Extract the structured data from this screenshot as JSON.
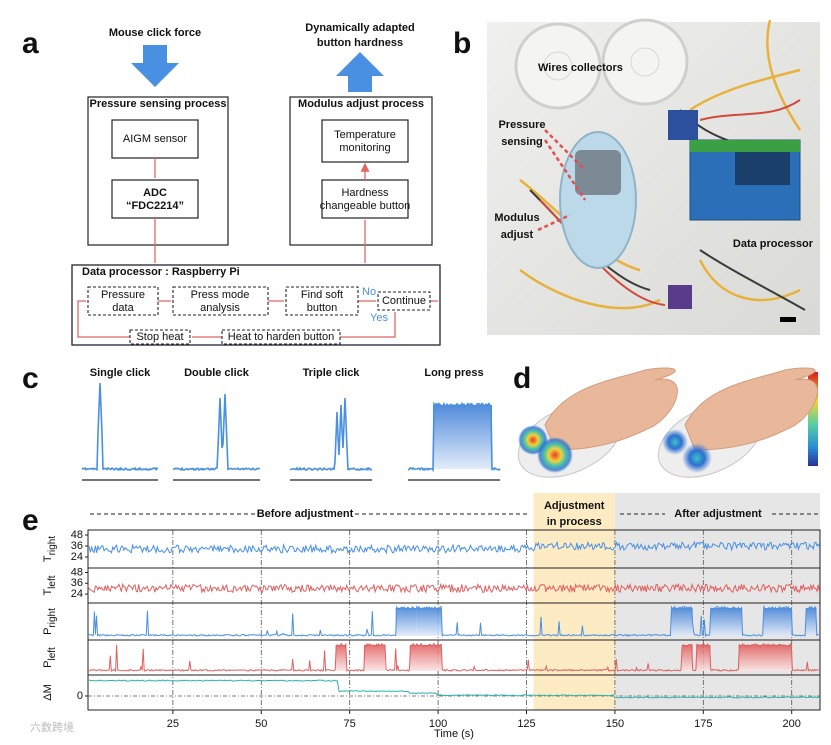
{
  "panel_a": {
    "letter": "a",
    "input_label": "Mouse click force",
    "output_label": [
      "Dynamically adapted",
      "button hardness"
    ],
    "sensing": {
      "title": "Pressure sensing process",
      "sensor": "AIGM sensor",
      "adc": [
        "ADC",
        "“FDC2214”"
      ]
    },
    "modulus": {
      "title": "Modulus adjust process",
      "monitor": [
        "Temperature",
        "monitoring"
      ],
      "button": [
        "Hardness",
        "changeable button"
      ]
    },
    "processor": {
      "title": "Data processor : Raspberry Pi",
      "pressure_data": [
        "Pressure",
        "data"
      ],
      "analysis": [
        "Press mode",
        "analysis"
      ],
      "find": [
        "Find soft",
        "button"
      ],
      "no": "No",
      "yes": "Yes",
      "continue": "Continue",
      "stop": "Stop heat",
      "heat": "Heat to harden button"
    }
  },
  "panel_b": {
    "letter": "b",
    "labels": {
      "wires": "Wires collectors",
      "pressure": [
        "Pressure",
        "sensing"
      ],
      "modulus": [
        "Modulus",
        "adjust"
      ],
      "processor": "Data processor"
    }
  },
  "panel_c": {
    "letter": "c",
    "modes": [
      "Single click",
      "Double click",
      "Triple click",
      "Long press"
    ]
  },
  "panel_d": {
    "letter": "d"
  },
  "panel_e": {
    "letter": "e",
    "phases": {
      "before": "Before adjustment",
      "during": [
        "Adjustment",
        "in process"
      ],
      "after": "After adjustment"
    },
    "adjustment_window": [
      127,
      150
    ],
    "rows": [
      {
        "symbol": "T",
        "sub": "right",
        "ylim": [
          12,
          53.5
        ],
        "yticks": [
          48,
          36,
          24
        ]
      },
      {
        "symbol": "T",
        "sub": "left",
        "ylim": [
          14,
          53
        ],
        "yticks": [
          48,
          36,
          24
        ]
      },
      {
        "symbol": "P",
        "sub": "right"
      },
      {
        "symbol": "P",
        "sub": "left"
      },
      {
        "symbol": "ΔM",
        "ylim": [
          -1,
          1.5
        ],
        "yticks": [
          0
        ]
      }
    ],
    "xlim": [
      1,
      208
    ],
    "xticks": [
      25,
      50,
      75,
      100,
      125,
      150,
      175,
      200
    ],
    "xlabel": "Time (s)"
  },
  "watermark": "六数跨境"
}
